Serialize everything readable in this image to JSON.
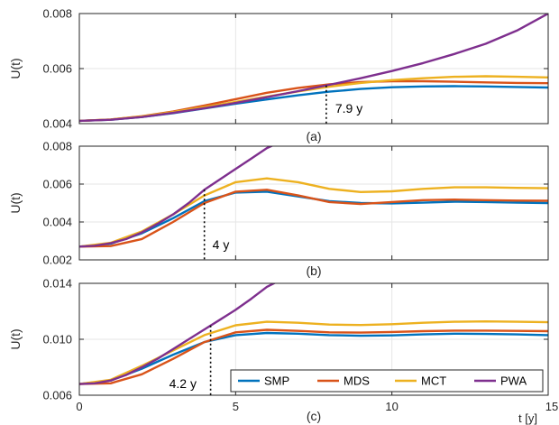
{
  "chart_data": {
    "type": "line",
    "x_axis": {
      "label": "t [y]",
      "ticks": [
        "0",
        "5",
        "10",
        "15"
      ],
      "range": [
        0,
        15
      ]
    },
    "legend": {
      "placement": "bottom-right of panel (c)",
      "entries": [
        "SMP",
        "MDS",
        "MCT",
        "PWA"
      ]
    },
    "colors": {
      "SMP": "#0072BD",
      "MDS": "#D95319",
      "MCT": "#EDB120",
      "PWA": "#7E2F8E"
    },
    "grid": true,
    "panels": [
      {
        "label": "(a)",
        "ylabel": "U(t)",
        "ylim": [
          0.004,
          0.008
        ],
        "yticks": [
          "0.004",
          "0.006",
          "0.008"
        ],
        "annotation": {
          "text": "7.9 y",
          "x": 7.9
        },
        "series": [
          {
            "name": "SMP",
            "x": [
              0,
              1,
              2,
              3,
              4,
              5,
              6,
              7,
              8,
              9,
              10,
              11,
              12,
              13,
              14,
              15
            ],
            "y": [
              0.0041,
              0.00414,
              0.00424,
              0.00438,
              0.00455,
              0.00472,
              0.00488,
              0.00503,
              0.00516,
              0.00526,
              0.00532,
              0.00535,
              0.00536,
              0.00535,
              0.00533,
              0.00531
            ]
          },
          {
            "name": "MDS",
            "x": [
              0,
              1,
              2,
              3,
              4,
              5,
              6,
              7,
              8,
              9,
              10,
              11,
              12,
              13,
              14,
              15
            ],
            "y": [
              0.0041,
              0.00415,
              0.00427,
              0.00444,
              0.00466,
              0.00489,
              0.00512,
              0.0053,
              0.00543,
              0.00551,
              0.00554,
              0.00554,
              0.00552,
              0.0055,
              0.00548,
              0.00547
            ]
          },
          {
            "name": "MCT",
            "x": [
              0,
              1,
              2,
              3,
              4,
              5,
              6,
              7,
              8,
              9,
              10,
              11,
              12,
              13,
              14,
              15
            ],
            "y": [
              0.0041,
              0.00415,
              0.00426,
              0.00442,
              0.0046,
              0.00479,
              0.00498,
              0.00517,
              0.00534,
              0.00548,
              0.00558,
              0.00565,
              0.0057,
              0.00572,
              0.0057,
              0.00568
            ]
          },
          {
            "name": "PWA",
            "x": [
              0,
              1,
              2,
              3,
              4,
              5,
              6,
              7,
              8,
              9,
              10,
              11,
              12,
              13,
              14,
              15
            ],
            "y": [
              0.0041,
              0.00414,
              0.00424,
              0.00439,
              0.00456,
              0.00475,
              0.00496,
              0.00518,
              0.00541,
              0.00565,
              0.00591,
              0.0062,
              0.00653,
              0.0069,
              0.00738,
              0.008
            ]
          }
        ]
      },
      {
        "label": "(b)",
        "ylabel": "U(t)",
        "ylim": [
          0.002,
          0.008
        ],
        "yticks": [
          "0.002",
          "0.004",
          "0.006",
          "0.008"
        ],
        "annotation": {
          "text": "4 y",
          "x": 4
        },
        "series": [
          {
            "name": "SMP",
            "x": [
              0,
              1,
              2,
              3,
              4,
              5,
              6,
              7,
              8,
              9,
              10,
              11,
              12,
              13,
              14,
              15
            ],
            "y": [
              0.0027,
              0.00285,
              0.0034,
              0.0042,
              0.0051,
              0.00555,
              0.0056,
              0.00535,
              0.0051,
              0.005,
              0.00498,
              0.00502,
              0.00507,
              0.00505,
              0.00502,
              0.005
            ]
          },
          {
            "name": "MDS",
            "x": [
              0,
              1,
              2,
              3,
              4,
              5,
              6,
              7,
              8,
              9,
              10,
              11,
              12,
              13,
              14,
              15
            ],
            "y": [
              0.0027,
              0.00273,
              0.0031,
              0.004,
              0.005,
              0.0056,
              0.0057,
              0.0054,
              0.00505,
              0.00495,
              0.00505,
              0.00515,
              0.00518,
              0.00515,
              0.00513,
              0.00512
            ]
          },
          {
            "name": "MCT",
            "x": [
              0,
              1,
              2,
              3,
              4,
              5,
              6,
              7,
              8,
              9,
              10,
              11,
              12,
              13,
              14,
              15
            ],
            "y": [
              0.0027,
              0.0029,
              0.0035,
              0.0044,
              0.0054,
              0.0061,
              0.0063,
              0.0061,
              0.00575,
              0.00558,
              0.00562,
              0.00575,
              0.00583,
              0.00583,
              0.0058,
              0.00578
            ]
          },
          {
            "name": "PWA",
            "x": [
              0,
              0.5,
              1,
              1.5,
              2,
              2.5,
              3,
              3.5,
              4,
              4.5,
              5,
              5.5,
              6,
              6.4
            ],
            "y": [
              0.0027,
              0.00275,
              0.00288,
              0.0031,
              0.00345,
              0.0039,
              0.0044,
              0.005,
              0.0057,
              0.00625,
              0.0068,
              0.00735,
              0.0079,
              0.0082
            ]
          }
        ]
      },
      {
        "label": "(c)",
        "ylabel": "U(t)",
        "ylim": [
          0.006,
          0.014
        ],
        "yticks": [
          "0.006",
          "0.010",
          "0.014"
        ],
        "annotation": {
          "text": "4.2 y",
          "x": 4.2
        },
        "series": [
          {
            "name": "SMP",
            "x": [
              0,
              1,
              2,
              3,
              4,
              5,
              6,
              7,
              8,
              9,
              10,
              11,
              12,
              13,
              14,
              15
            ],
            "y": [
              0.0068,
              0.00705,
              0.0079,
              0.0089,
              0.0098,
              0.0103,
              0.01045,
              0.0104,
              0.0103,
              0.01025,
              0.01028,
              0.01035,
              0.0104,
              0.01038,
              0.01035,
              0.0103
            ]
          },
          {
            "name": "MDS",
            "x": [
              0,
              1,
              2,
              3,
              4,
              5,
              6,
              7,
              8,
              9,
              10,
              11,
              12,
              13,
              14,
              15
            ],
            "y": [
              0.0068,
              0.00685,
              0.0075,
              0.0086,
              0.0098,
              0.0105,
              0.01068,
              0.0106,
              0.0105,
              0.01048,
              0.01052,
              0.01058,
              0.01062,
              0.01062,
              0.0106,
              0.01058
            ]
          },
          {
            "name": "MCT",
            "x": [
              0,
              1,
              2,
              3,
              4,
              5,
              6,
              7,
              8,
              9,
              10,
              11,
              12,
              13,
              14,
              15
            ],
            "y": [
              0.0068,
              0.0071,
              0.0081,
              0.0092,
              0.0103,
              0.011,
              0.01125,
              0.01118,
              0.01105,
              0.01102,
              0.01108,
              0.01118,
              0.01125,
              0.01128,
              0.01125,
              0.01122
            ]
          },
          {
            "name": "PWA",
            "x": [
              0,
              0.5,
              1,
              1.5,
              2,
              2.5,
              3,
              3.5,
              4,
              4.5,
              5,
              5.5,
              6,
              6.4
            ],
            "y": [
              0.0068,
              0.00685,
              0.00705,
              0.00745,
              0.008,
              0.0086,
              0.0093,
              0.01,
              0.0107,
              0.0114,
              0.0121,
              0.0129,
              0.01375,
              0.0142
            ]
          }
        ]
      }
    ]
  }
}
